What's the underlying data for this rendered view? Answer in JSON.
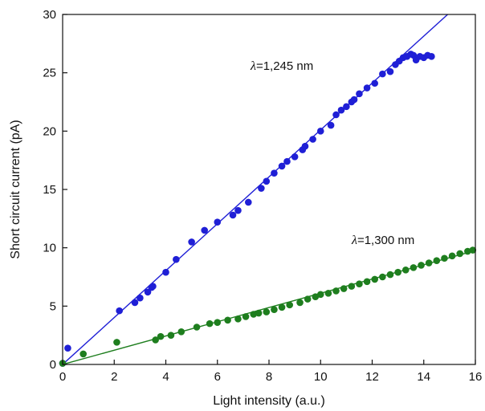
{
  "chart_data": {
    "type": "scatter",
    "title": "",
    "xlabel": "Light intensity (a.u.)",
    "ylabel": "Short circuit current (pA)",
    "xlim": [
      0,
      16
    ],
    "ylim": [
      0,
      30
    ],
    "xticks": [
      "0",
      "2",
      "4",
      "6",
      "8",
      "10",
      "12",
      "14",
      "16"
    ],
    "yticks": [
      "0",
      "5",
      "10",
      "15",
      "20",
      "25",
      "30"
    ],
    "grid": false,
    "legend": "none",
    "series": [
      {
        "symbol": "λ",
        "label_suffix": "=1,245 nm",
        "color": "#1f1fd6",
        "fit_slope": 2.01,
        "points": [
          [
            0.0,
            0.1
          ],
          [
            0.2,
            1.4
          ],
          [
            2.2,
            4.6
          ],
          [
            2.8,
            5.3
          ],
          [
            3.0,
            5.7
          ],
          [
            3.3,
            6.2
          ],
          [
            3.45,
            6.6
          ],
          [
            3.5,
            6.7
          ],
          [
            4.0,
            7.9
          ],
          [
            4.4,
            9.0
          ],
          [
            5.0,
            10.5
          ],
          [
            5.5,
            11.5
          ],
          [
            6.0,
            12.2
          ],
          [
            6.6,
            12.8
          ],
          [
            6.8,
            13.2
          ],
          [
            7.2,
            13.9
          ],
          [
            7.7,
            15.1
          ],
          [
            7.9,
            15.7
          ],
          [
            8.2,
            16.4
          ],
          [
            8.5,
            17.0
          ],
          [
            8.7,
            17.4
          ],
          [
            9.0,
            17.8
          ],
          [
            9.3,
            18.4
          ],
          [
            9.4,
            18.7
          ],
          [
            9.7,
            19.3
          ],
          [
            10.0,
            20.0
          ],
          [
            10.4,
            20.5
          ],
          [
            10.6,
            21.4
          ],
          [
            10.8,
            21.8
          ],
          [
            11.0,
            22.1
          ],
          [
            11.2,
            22.5
          ],
          [
            11.3,
            22.7
          ],
          [
            11.5,
            23.2
          ],
          [
            11.8,
            23.7
          ],
          [
            12.1,
            24.1
          ],
          [
            12.4,
            24.9
          ],
          [
            12.7,
            25.1
          ],
          [
            12.9,
            25.7
          ],
          [
            13.05,
            26.0
          ],
          [
            13.2,
            26.3
          ],
          [
            13.35,
            26.4
          ],
          [
            13.5,
            26.6
          ],
          [
            13.6,
            26.5
          ],
          [
            13.7,
            26.1
          ],
          [
            13.85,
            26.4
          ],
          [
            14.0,
            26.3
          ],
          [
            14.15,
            26.5
          ],
          [
            14.3,
            26.4
          ]
        ]
      },
      {
        "symbol": "λ",
        "label_suffix": "=1,300 nm",
        "color": "#1e7e1e",
        "fit_slope": 0.61,
        "points": [
          [
            0.0,
            0.1
          ],
          [
            0.8,
            0.9
          ],
          [
            2.1,
            1.9
          ],
          [
            3.6,
            2.1
          ],
          [
            3.8,
            2.4
          ],
          [
            4.2,
            2.5
          ],
          [
            4.6,
            2.8
          ],
          [
            5.2,
            3.2
          ],
          [
            5.7,
            3.5
          ],
          [
            6.0,
            3.6
          ],
          [
            6.4,
            3.8
          ],
          [
            6.8,
            3.9
          ],
          [
            7.1,
            4.1
          ],
          [
            7.4,
            4.3
          ],
          [
            7.6,
            4.4
          ],
          [
            7.9,
            4.5
          ],
          [
            8.2,
            4.7
          ],
          [
            8.5,
            4.9
          ],
          [
            8.8,
            5.1
          ],
          [
            9.2,
            5.3
          ],
          [
            9.5,
            5.6
          ],
          [
            9.8,
            5.8
          ],
          [
            10.0,
            6.0
          ],
          [
            10.3,
            6.1
          ],
          [
            10.6,
            6.3
          ],
          [
            10.9,
            6.5
          ],
          [
            11.2,
            6.7
          ],
          [
            11.5,
            6.9
          ],
          [
            11.8,
            7.1
          ],
          [
            12.1,
            7.3
          ],
          [
            12.4,
            7.5
          ],
          [
            12.7,
            7.7
          ],
          [
            13.0,
            7.9
          ],
          [
            13.3,
            8.1
          ],
          [
            13.6,
            8.3
          ],
          [
            13.9,
            8.5
          ],
          [
            14.2,
            8.7
          ],
          [
            14.5,
            8.9
          ],
          [
            14.8,
            9.1
          ],
          [
            15.1,
            9.3
          ],
          [
            15.4,
            9.5
          ],
          [
            15.7,
            9.7
          ],
          [
            15.9,
            9.8
          ]
        ]
      }
    ]
  }
}
